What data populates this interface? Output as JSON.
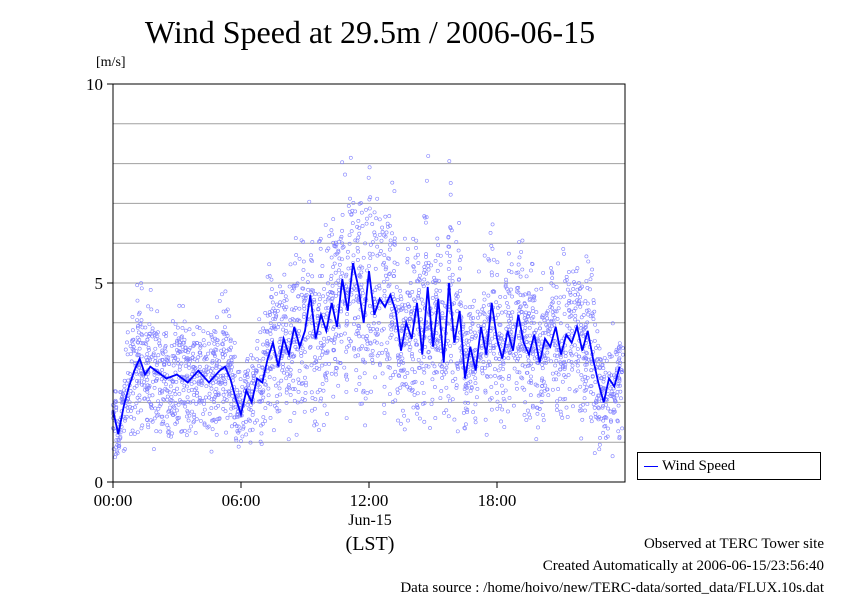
{
  "header": {
    "title": "Wind Speed at 29.5m / 2006-06-15",
    "unit": "[m/s]"
  },
  "legend": {
    "label": "Wind Speed"
  },
  "footer": {
    "line1": "Observed at TERC Tower site",
    "line2": "Created Automatically at 2006-06-15/23:56:40",
    "line3": "Data source : /home/hoivo/new/TERC-data/sorted_data/FLUX.10s.dat"
  },
  "x_axis": {
    "date_label": "Jun-15",
    "label": "(LST)"
  },
  "colors": {
    "series": "#0000ff",
    "scatter": "#8080ff",
    "grid": "#a0a0a0"
  },
  "chart_data": {
    "type": "line",
    "title": "Wind Speed at 29.5m / 2006-06-15",
    "ylabel": "[m/s]",
    "xlabel": "(LST)",
    "ylim": [
      0,
      10
    ],
    "xlim_hours": [
      0,
      24
    ],
    "x_ticks": [
      "00:00",
      "06:00",
      "12:00",
      "18:00"
    ],
    "y_ticks": [
      "0",
      "5",
      "10"
    ],
    "grid": "horizontal",
    "legend_position": "right",
    "series": [
      {
        "name": "Wind Speed",
        "style": "line",
        "x_hours": [
          0,
          0.25,
          0.5,
          0.75,
          1,
          1.25,
          1.5,
          1.75,
          2,
          2.5,
          3,
          3.5,
          4,
          4.5,
          5,
          5.25,
          5.5,
          5.75,
          6,
          6.25,
          6.5,
          6.75,
          7,
          7.25,
          7.5,
          7.75,
          8,
          8.25,
          8.5,
          8.75,
          9,
          9.25,
          9.5,
          9.75,
          10,
          10.25,
          10.5,
          10.75,
          11,
          11.25,
          11.5,
          11.75,
          12,
          12.25,
          12.5,
          12.75,
          13,
          13.25,
          13.5,
          13.75,
          14,
          14.25,
          14.5,
          14.75,
          15,
          15.25,
          15.5,
          15.75,
          16,
          16.25,
          16.5,
          16.75,
          17,
          17.25,
          17.5,
          17.75,
          18,
          18.25,
          18.5,
          18.75,
          19,
          19.25,
          19.5,
          19.75,
          20,
          20.25,
          20.5,
          20.75,
          21,
          21.25,
          21.5,
          21.75,
          22,
          22.25,
          22.5,
          22.75,
          23,
          23.25,
          23.5,
          23.75
        ],
        "y": [
          1.8,
          1.2,
          1.9,
          2.4,
          2.8,
          3.1,
          2.7,
          2.9,
          2.8,
          2.6,
          2.7,
          2.5,
          2.8,
          2.5,
          2.8,
          2.9,
          2.6,
          2.1,
          1.7,
          2.3,
          2.0,
          2.6,
          2.5,
          3.1,
          3.5,
          2.9,
          3.6,
          3.2,
          3.9,
          3.4,
          3.8,
          4.7,
          3.6,
          4.2,
          3.8,
          4.5,
          3.9,
          5.1,
          4.3,
          5.5,
          4.9,
          4.0,
          5.3,
          4.2,
          4.6,
          4.4,
          4.7,
          4.3,
          3.3,
          4.0,
          3.6,
          4.5,
          3.2,
          4.9,
          3.4,
          4.6,
          3.0,
          5.0,
          3.5,
          4.3,
          2.6,
          3.4,
          2.8,
          3.9,
          3.2,
          4.5,
          3.6,
          3.1,
          3.8,
          3.3,
          4.2,
          3.5,
          3.2,
          3.7,
          3.0,
          3.6,
          3.4,
          3.9,
          3.2,
          3.7,
          3.5,
          3.9,
          3.3,
          3.8,
          3.1,
          2.5,
          2.0,
          2.6,
          2.4,
          2.9
        ]
      }
    ]
  }
}
